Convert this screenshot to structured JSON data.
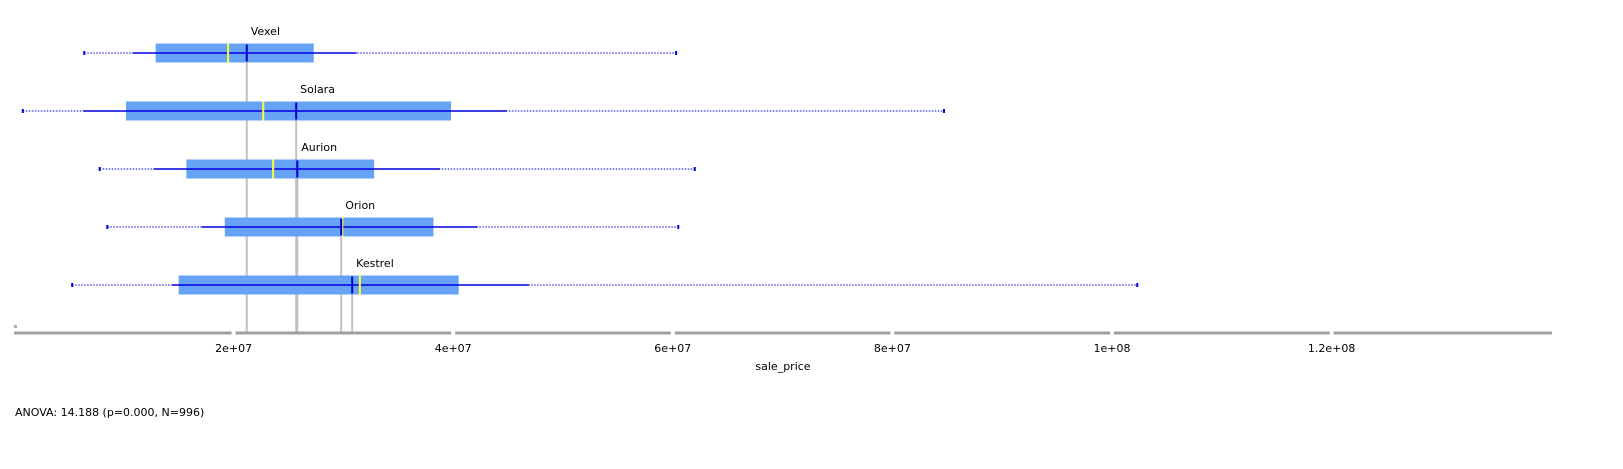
{
  "chart_data": {
    "type": "boxplot",
    "xlabel": "sale_price",
    "xlim": [
      0,
      140000000
    ],
    "ticks": [
      {
        "value": 20000000,
        "label": "2e+07"
      },
      {
        "value": 40000000,
        "label": "4e+07"
      },
      {
        "value": 60000000,
        "label": "6e+07"
      },
      {
        "value": 80000000,
        "label": "8e+07"
      },
      {
        "value": 100000000,
        "label": "1e+08"
      },
      {
        "value": 120000000,
        "label": "1.2e+08"
      }
    ],
    "groups": [
      {
        "name": "Vexel",
        "min": 6400000,
        "whisker_low": 10800000,
        "q1": 12900000,
        "median": 19500000,
        "mean": 21200000,
        "q3": 27300000,
        "whisker_high": 31200000,
        "max": 60300000
      },
      {
        "name": "Solara",
        "min": 800000,
        "whisker_low": 6300000,
        "q1": 10200000,
        "median": 22700000,
        "mean": 25700000,
        "q3": 39800000,
        "whisker_high": 44900000,
        "max": 84700000
      },
      {
        "name": "Aurion",
        "min": 7800000,
        "whisker_low": 12700000,
        "q1": 15700000,
        "median": 23600000,
        "mean": 25800000,
        "q3": 32800000,
        "whisker_high": 38800000,
        "max": 62000000
      },
      {
        "name": "Orion",
        "min": 8500000,
        "whisker_low": 17100000,
        "q1": 19200000,
        "median": 29900000,
        "mean": 29800000,
        "q3": 38200000,
        "whisker_high": 42200000,
        "max": 60500000
      },
      {
        "name": "Kestrel",
        "min": 5300000,
        "whisker_low": 14400000,
        "q1": 15000000,
        "median": 31500000,
        "mean": 30800000,
        "q3": 40500000,
        "whisker_high": 46900000,
        "max": 102300000
      }
    ],
    "colors": {
      "box": "#66a3f5",
      "whisker": "#0000e0",
      "median": "#ffff33",
      "mean": "#0000c8",
      "reference": "#c0c0c0",
      "axis": "#a0a0a0"
    }
  },
  "stats_text": "ANOVA: 14.188 (p=0.000, N=996)"
}
